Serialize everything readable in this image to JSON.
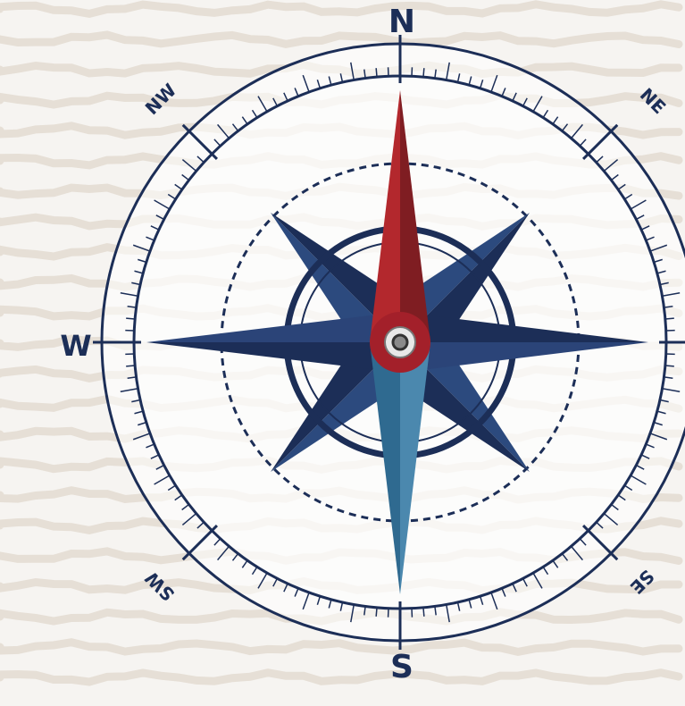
{
  "compass": {
    "labels": {
      "n": "N",
      "ne": "NE",
      "w": "W",
      "nw": "NW",
      "sw": "SW",
      "s": "S",
      "se": "SE"
    }
  }
}
